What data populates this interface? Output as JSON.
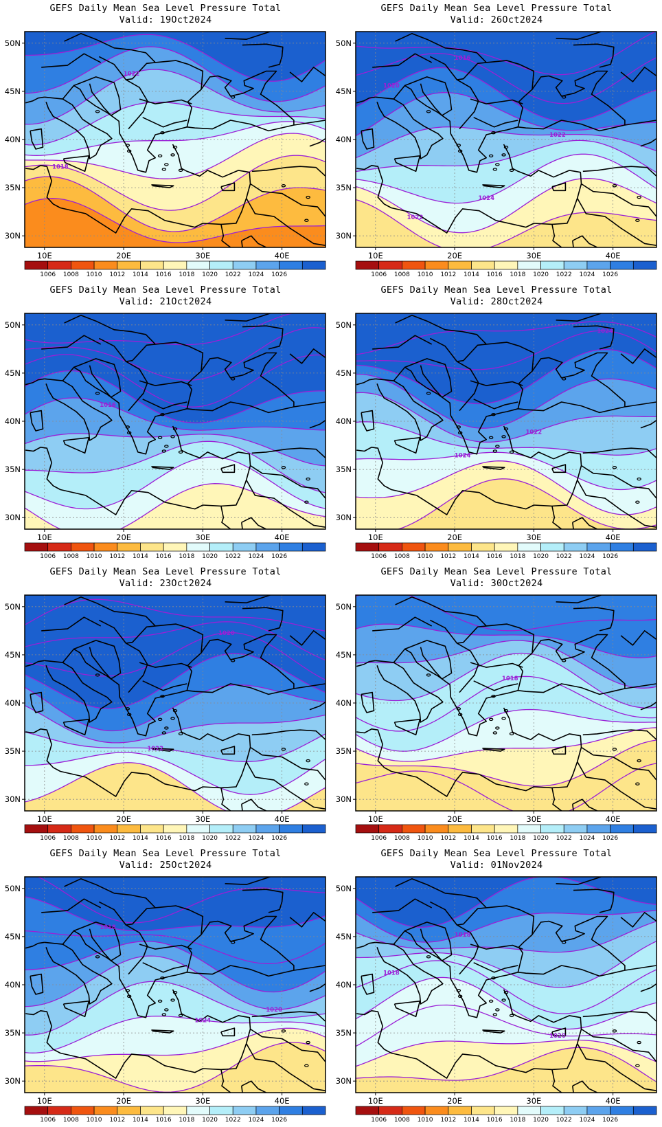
{
  "colorbar": {
    "labels": [
      "1006",
      "1008",
      "1010",
      "1012",
      "1014",
      "1016",
      "1018",
      "1020",
      "1022",
      "1024",
      "1026"
    ],
    "colors": [
      "#a50f0f",
      "#d62a17",
      "#f0550f",
      "#fb8c1d",
      "#fdbb3f",
      "#fde58a",
      "#fff6b8",
      "#e2fbfb",
      "#b4eef9",
      "#8ecdf3",
      "#5ca4ec",
      "#2f7fe2",
      "#1b60cf"
    ]
  },
  "axes": {
    "lon_labels": [
      "10E",
      "20E",
      "30E",
      "40E"
    ],
    "lat_labels": [
      "50N",
      "45N",
      "40N",
      "35N",
      "30N"
    ]
  },
  "panels": [
    {
      "title": "GEFS Daily Mean Sea Level Pressure Total",
      "valid": "Valid: 19Oct2024",
      "bands": [
        3,
        4,
        5,
        6,
        7,
        8,
        9,
        10,
        11,
        12
      ],
      "labels": [
        "1018",
        "1022"
      ]
    },
    {
      "title": "GEFS Daily Mean Sea Level Pressure Total",
      "valid": "Valid: 26Oct2024",
      "bands": [
        5,
        6,
        7,
        8,
        9,
        10,
        11,
        12,
        12,
        12
      ],
      "labels": [
        "1022",
        "1024",
        "1022",
        "1020",
        "1016"
      ]
    },
    {
      "title": "GEFS Daily Mean Sea Level Pressure Total",
      "valid": "Valid: 21Oct2024",
      "bands": [
        6,
        7,
        8,
        9,
        10,
        11,
        12,
        12,
        12,
        12
      ],
      "labels": [
        "1016"
      ]
    },
    {
      "title": "GEFS Daily Mean Sea Level Pressure Total",
      "valid": "Valid: 28Oct2024",
      "bands": [
        5,
        6,
        7,
        8,
        9,
        10,
        11,
        12,
        12,
        12
      ],
      "labels": [
        "1024",
        "1022",
        "1024"
      ]
    },
    {
      "title": "GEFS Daily Mean Sea Level Pressure Total",
      "valid": "Valid: 23Oct2024",
      "bands": [
        5,
        7,
        8,
        9,
        10,
        11,
        12,
        12,
        12,
        12
      ],
      "labels": [
        "1022",
        "1020"
      ]
    },
    {
      "title": "GEFS Daily Mean Sea Level Pressure Total",
      "valid": "Valid: 30Oct2024",
      "bands": [
        5,
        5,
        6,
        7,
        8,
        8,
        9,
        10,
        11,
        11
      ],
      "labels": [
        "1018"
      ]
    },
    {
      "title": "GEFS Daily Mean Sea Level Pressure Total",
      "valid": "Valid: 25Oct2024",
      "bands": [
        5,
        6,
        7,
        8,
        9,
        10,
        11,
        11,
        12,
        12
      ],
      "labels": [
        "1024",
        "1020",
        "1018"
      ]
    },
    {
      "title": "GEFS Daily Mean Sea Level Pressure Total",
      "valid": "Valid: 01Nov2024",
      "bands": [
        5,
        6,
        7,
        7,
        8,
        8,
        9,
        10,
        11,
        12
      ],
      "labels": [
        "1020",
        "1018",
        "1018"
      ]
    }
  ]
}
